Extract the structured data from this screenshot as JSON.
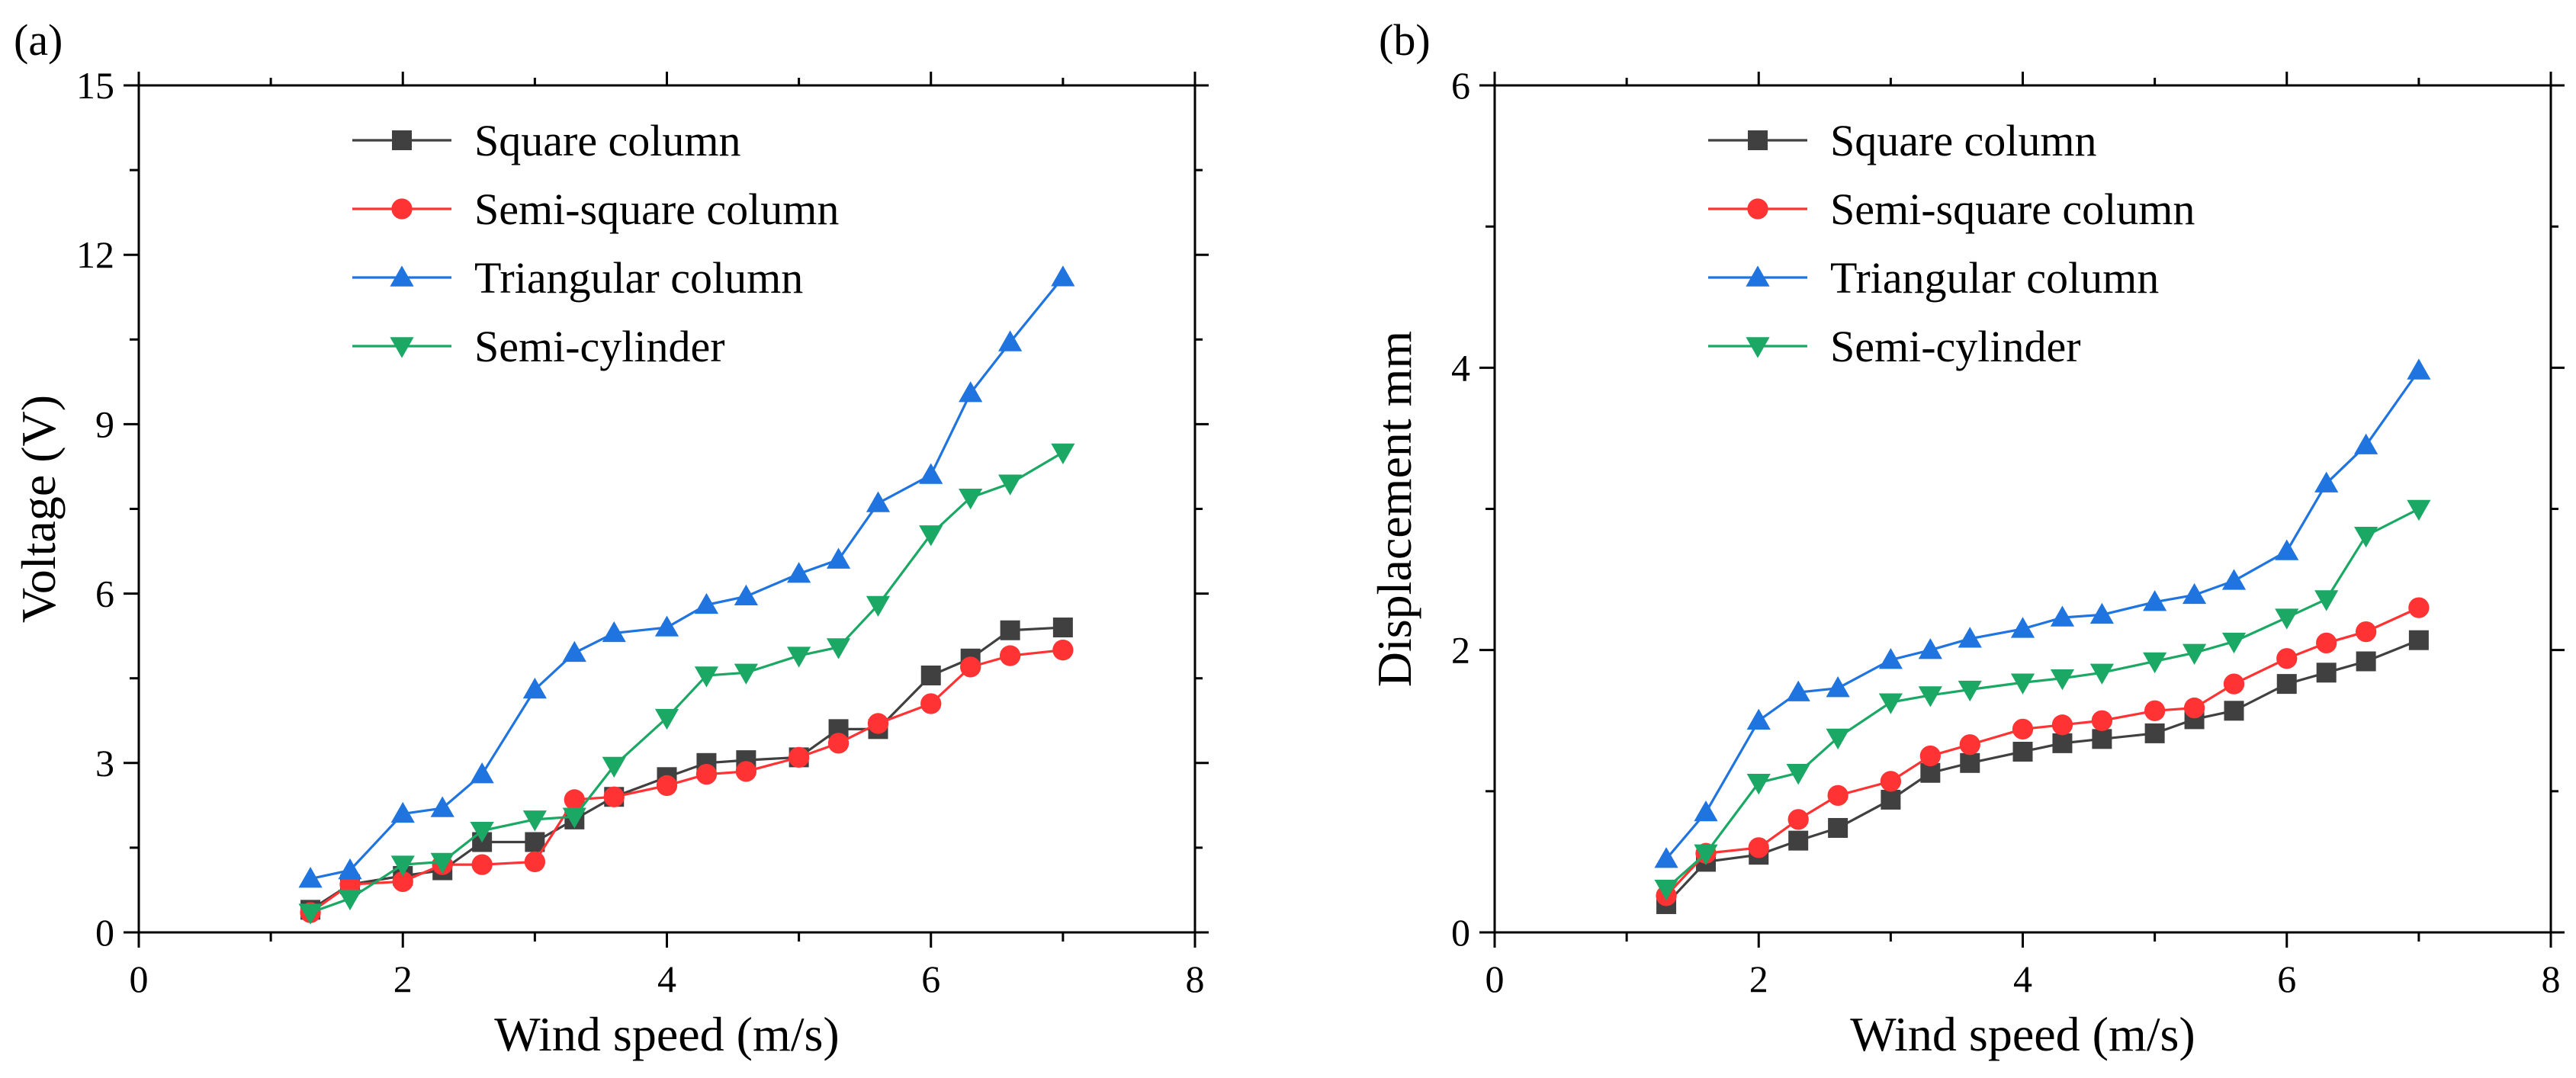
{
  "chart_data": [
    {
      "panel_label": "(a)",
      "type": "line",
      "xlabel": "Wind speed (m/s)",
      "ylabel": "Voltage (V)",
      "xlim": [
        0,
        8
      ],
      "ylim": [
        0,
        15
      ],
      "xticks": [
        0,
        2,
        4,
        6,
        8
      ],
      "yticks": [
        0,
        3,
        6,
        9,
        12,
        15
      ],
      "grid": false,
      "legend_position": "top-left",
      "x": [
        1.3,
        1.6,
        2.0,
        2.3,
        2.6,
        3.0,
        3.3,
        3.6,
        4.0,
        4.3,
        4.6,
        5.0,
        5.3,
        5.6,
        6.0,
        6.3,
        6.6,
        7.0
      ],
      "series": [
        {
          "name": "Square column",
          "color": "#404040",
          "marker": "square",
          "values": [
            0.4,
            0.85,
            1.0,
            1.1,
            1.6,
            1.6,
            2.0,
            2.4,
            2.75,
            3.0,
            3.05,
            3.1,
            3.6,
            3.6,
            4.55,
            4.85,
            5.35,
            5.4
          ]
        },
        {
          "name": "Semi-square column",
          "color": "#ff3333",
          "marker": "circle",
          "values": [
            0.35,
            0.85,
            0.9,
            1.2,
            1.2,
            1.25,
            2.35,
            2.4,
            2.6,
            2.8,
            2.85,
            3.1,
            3.35,
            3.7,
            4.05,
            4.7,
            4.9,
            5.0
          ]
        },
        {
          "name": "Triangular column",
          "color": "#1f74e0",
          "marker": "triangle-up",
          "values": [
            0.95,
            1.1,
            2.1,
            2.2,
            2.8,
            4.3,
            4.95,
            5.3,
            5.4,
            5.8,
            5.95,
            6.35,
            6.6,
            7.6,
            8.1,
            9.55,
            10.45,
            11.6
          ]
        },
        {
          "name": "Semi-cylinder",
          "color": "#1aa864",
          "marker": "triangle-down",
          "values": [
            0.35,
            0.6,
            1.2,
            1.25,
            1.8,
            2.0,
            2.05,
            2.95,
            3.8,
            4.55,
            4.6,
            4.9,
            5.05,
            5.8,
            7.05,
            7.7,
            7.95,
            8.5
          ]
        }
      ]
    },
    {
      "panel_label": "(b)",
      "type": "line",
      "xlabel": "Wind speed (m/s)",
      "ylabel": "Displacement mm",
      "xlim": [
        0,
        8
      ],
      "ylim": [
        0,
        6
      ],
      "xticks": [
        0,
        2,
        4,
        6,
        8
      ],
      "yticks": [
        0,
        2,
        4,
        6
      ],
      "grid": false,
      "legend_position": "top-left",
      "x": [
        1.3,
        1.6,
        2.0,
        2.3,
        2.6,
        3.0,
        3.3,
        3.6,
        4.0,
        4.3,
        4.6,
        5.0,
        5.3,
        5.6,
        6.0,
        6.3,
        6.6,
        7.0
      ],
      "series": [
        {
          "name": "Square column",
          "color": "#404040",
          "marker": "square",
          "values": [
            0.2,
            0.5,
            0.55,
            0.65,
            0.74,
            0.94,
            1.13,
            1.2,
            1.28,
            1.34,
            1.37,
            1.41,
            1.51,
            1.57,
            1.76,
            1.84,
            1.92,
            2.07
          ]
        },
        {
          "name": "Semi-square column",
          "color": "#ff3333",
          "marker": "circle",
          "values": [
            0.26,
            0.56,
            0.6,
            0.8,
            0.97,
            1.07,
            1.25,
            1.33,
            1.44,
            1.47,
            1.5,
            1.57,
            1.59,
            1.76,
            1.94,
            2.05,
            2.13,
            2.3
          ]
        },
        {
          "name": "Triangular column",
          "color": "#1f74e0",
          "marker": "triangle-up",
          "values": [
            0.52,
            0.85,
            1.5,
            1.7,
            1.73,
            1.93,
            2.0,
            2.08,
            2.15,
            2.23,
            2.25,
            2.34,
            2.39,
            2.49,
            2.7,
            3.18,
            3.45,
            3.98
          ]
        },
        {
          "name": "Semi-cylinder",
          "color": "#1aa864",
          "marker": "triangle-down",
          "values": [
            0.31,
            0.56,
            1.06,
            1.13,
            1.38,
            1.63,
            1.68,
            1.72,
            1.77,
            1.8,
            1.84,
            1.92,
            1.98,
            2.06,
            2.23,
            2.36,
            2.81,
            3.0
          ]
        }
      ]
    }
  ]
}
